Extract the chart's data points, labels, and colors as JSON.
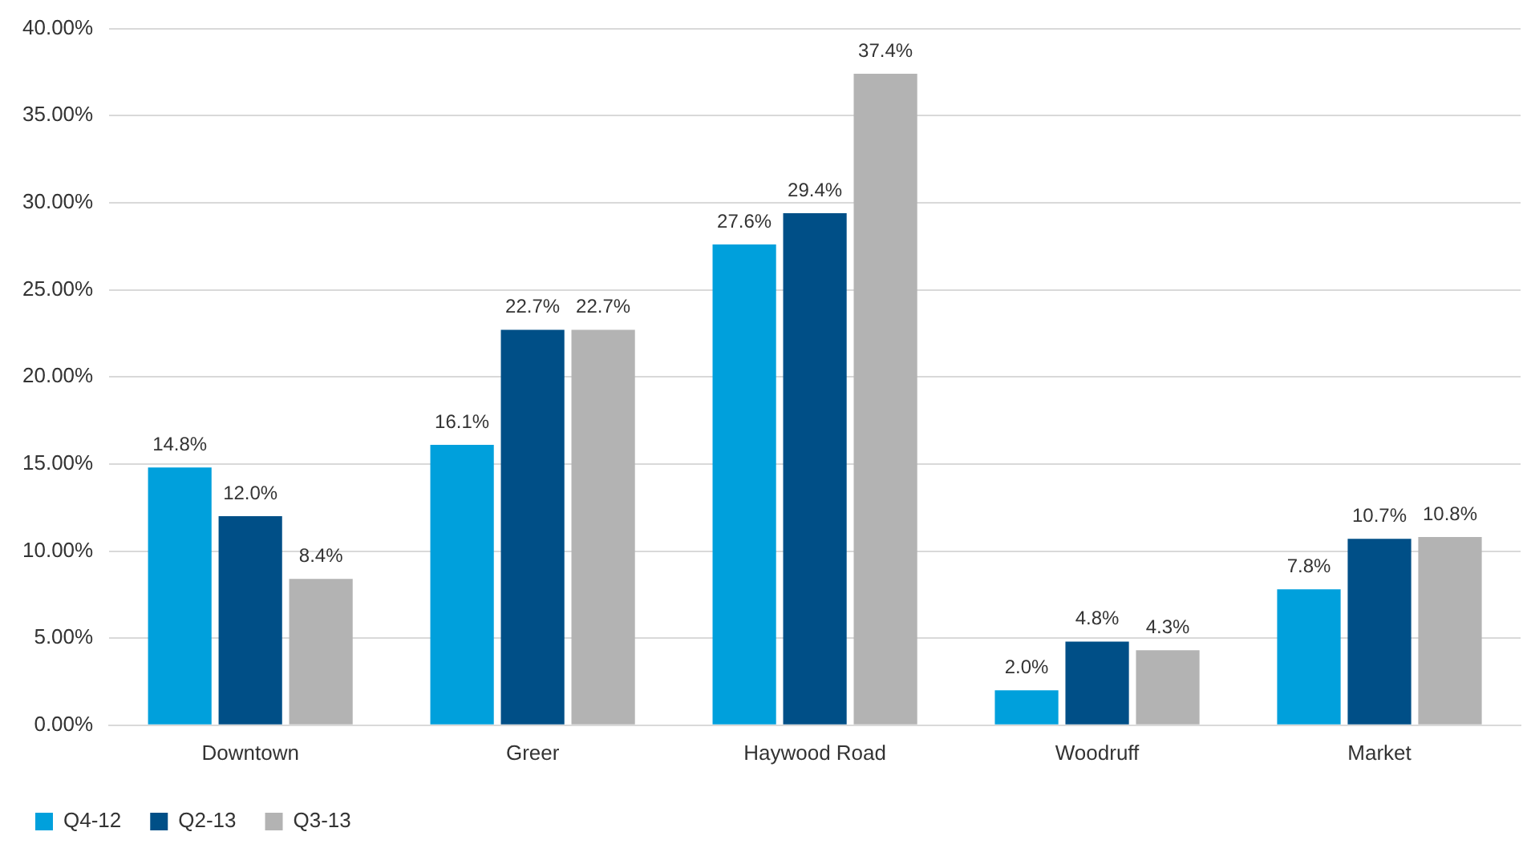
{
  "chart_data": {
    "type": "bar",
    "categories": [
      "Downtown",
      "Greer",
      "Haywood Road",
      "Woodruff",
      "Market"
    ],
    "series": [
      {
        "name": "Q4-12",
        "color": "#00a0dc",
        "values": [
          14.8,
          16.1,
          27.6,
          2.0,
          7.8
        ],
        "value_labels": [
          "14.8%",
          "16.1%",
          "27.6%",
          "2.0%",
          "7.8%"
        ]
      },
      {
        "name": "Q2-13",
        "color": "#004f87",
        "values": [
          12.0,
          22.7,
          29.4,
          4.8,
          10.7
        ],
        "value_labels": [
          "12.0%",
          "22.7%",
          "29.4%",
          "4.8%",
          "10.7%"
        ]
      },
      {
        "name": "Q3-13",
        "color": "#b3b3b3",
        "values": [
          8.4,
          22.7,
          37.4,
          4.3,
          10.8
        ],
        "value_labels": [
          "8.4%",
          "22.7%",
          "37.4%",
          "4.3%",
          "10.8%"
        ]
      }
    ],
    "ylim": [
      0,
      40
    ],
    "yticks": [
      {
        "value": 0,
        "label": "0.00%"
      },
      {
        "value": 5,
        "label": "5.00%"
      },
      {
        "value": 10,
        "label": "10.00%"
      },
      {
        "value": 15,
        "label": "15.00%"
      },
      {
        "value": 20,
        "label": "20.00%"
      },
      {
        "value": 25,
        "label": "25.00%"
      },
      {
        "value": 30,
        "label": "30.00%"
      },
      {
        "value": 35,
        "label": "35.00%"
      },
      {
        "value": 40,
        "label": "40.00%"
      }
    ],
    "grid": "y",
    "legend": "bottom left"
  }
}
